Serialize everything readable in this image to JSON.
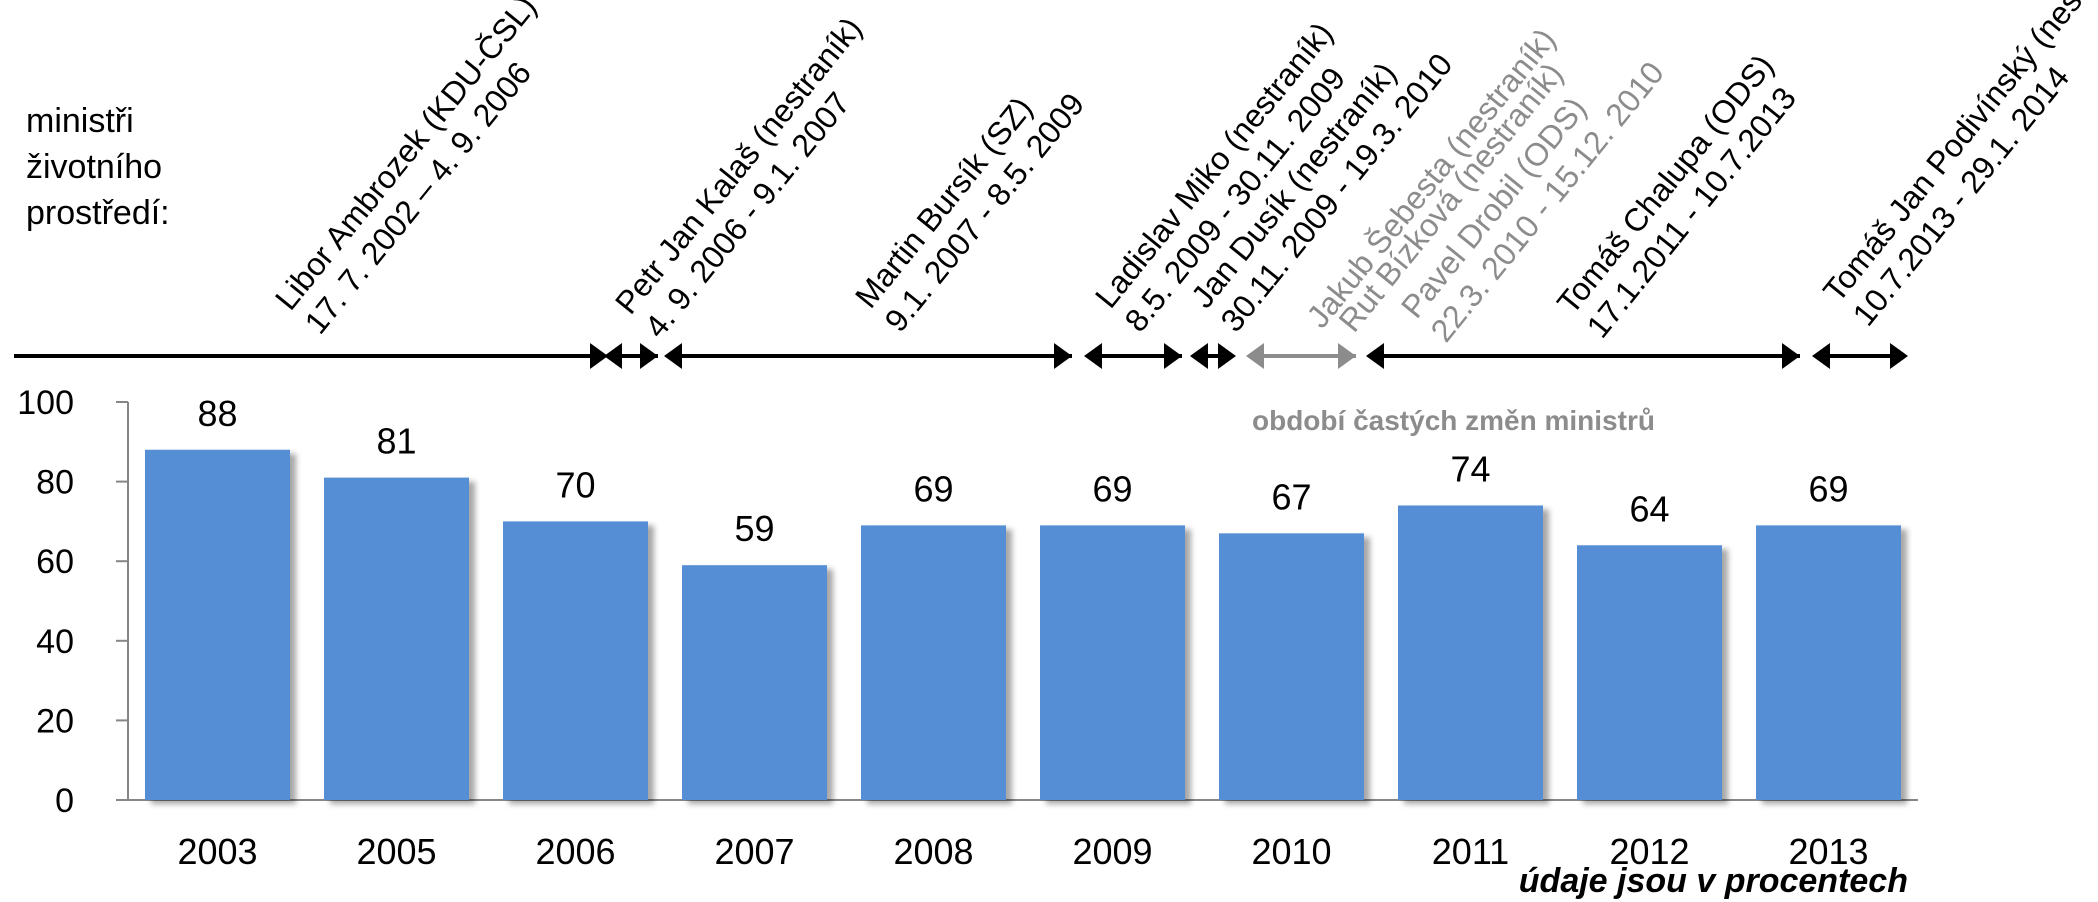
{
  "chart_data": {
    "type": "bar",
    "categories": [
      "2003",
      "2005",
      "2006",
      "2007",
      "2008",
      "2009",
      "2010",
      "2011",
      "2012",
      "2013"
    ],
    "values": [
      88,
      81,
      70,
      59,
      69,
      69,
      67,
      74,
      64,
      69
    ],
    "ylim": [
      0,
      100
    ],
    "yticks": [
      "0",
      "20",
      "40",
      "60",
      "80",
      "100"
    ],
    "grid": false,
    "bar_color": "#558ED5",
    "note": "údaje jsou v procentech",
    "side_label": [
      "ministři",
      "životního",
      "prostředí:"
    ],
    "period_label": "období častých změn ministrů",
    "ministers": [
      {
        "name": "Libor Ambrozek (KDU-ČSL)",
        "term": "17. 7. 2002 – 4. 9. 2006",
        "color": "#000000"
      },
      {
        "name": "Petr Jan Kalaš (nestraník)",
        "term": "4. 9. 2006 - 9.1. 2007",
        "color": "#000000"
      },
      {
        "name": "Martin Bursík (SZ)",
        "term": "9.1. 2007 - 8.5. 2009",
        "color": "#000000"
      },
      {
        "name": "Ladislav Miko (nestraník)",
        "term": "8.5. 2009 - 30.11. 2009",
        "color": "#000000"
      },
      {
        "name": "Jan Dusík (nestraník)",
        "term": "30.11. 2009 - 19.3. 2010",
        "color": "#000000"
      },
      {
        "name": "Jakub Šebesta (nestraník)",
        "term": "",
        "color": "#8c8c8c"
      },
      {
        "name": "Rut Bízková (nestraník)",
        "term": "",
        "color": "#8c8c8c"
      },
      {
        "name": "Pavel Drobil (ODS)",
        "term": "22.3. 2010 - 15.12. 2010",
        "color": "#8c8c8c"
      },
      {
        "name": "Tomáš Chalupa (ODS)",
        "term": "17.1.2011 - 10.7.2013",
        "color": "#000000"
      },
      {
        "name": "Tomáš Jan Podivínský (nes",
        "term": "10.7.2013 - 29.1. 2014",
        "color": "#000000"
      }
    ],
    "timeline_colors": {
      "main": "#000000",
      "period": "#8c8c8c"
    }
  }
}
